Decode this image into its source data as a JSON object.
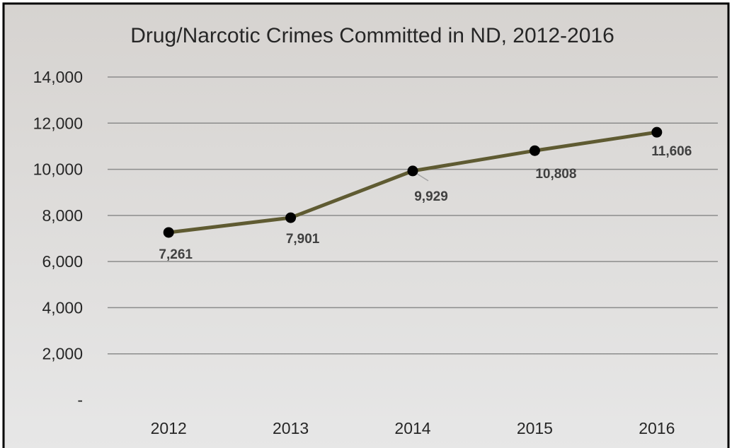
{
  "chart_data": {
    "type": "line",
    "title": "Drug/Narcotic Crimes Committed in ND, 2012-2016",
    "xlabel": "",
    "ylabel": "",
    "categories": [
      "2012",
      "2013",
      "2014",
      "2015",
      "2016"
    ],
    "series": [
      {
        "values": [
          7261,
          7901,
          9929,
          10808,
          11606
        ],
        "data_labels": [
          "7,261",
          "7,901",
          "9,929",
          "10,808",
          "11,606"
        ]
      }
    ],
    "ylim": [
      0,
      14000
    ],
    "y_ticks": [
      0,
      2000,
      4000,
      6000,
      8000,
      10000,
      12000,
      14000
    ],
    "y_tick_labels": [
      "-",
      "2,000",
      "4,000",
      "6,000",
      "8,000",
      "10,000",
      "12,000",
      "14,000"
    ],
    "grid": true,
    "legend": "none",
    "colors": {
      "line": "#5F5B32",
      "marker": "#000000",
      "gridline": "#8C8C8C",
      "background_top": "#D7D4D1",
      "background_bottom": "#E6E6E6",
      "border": "#000000"
    }
  }
}
